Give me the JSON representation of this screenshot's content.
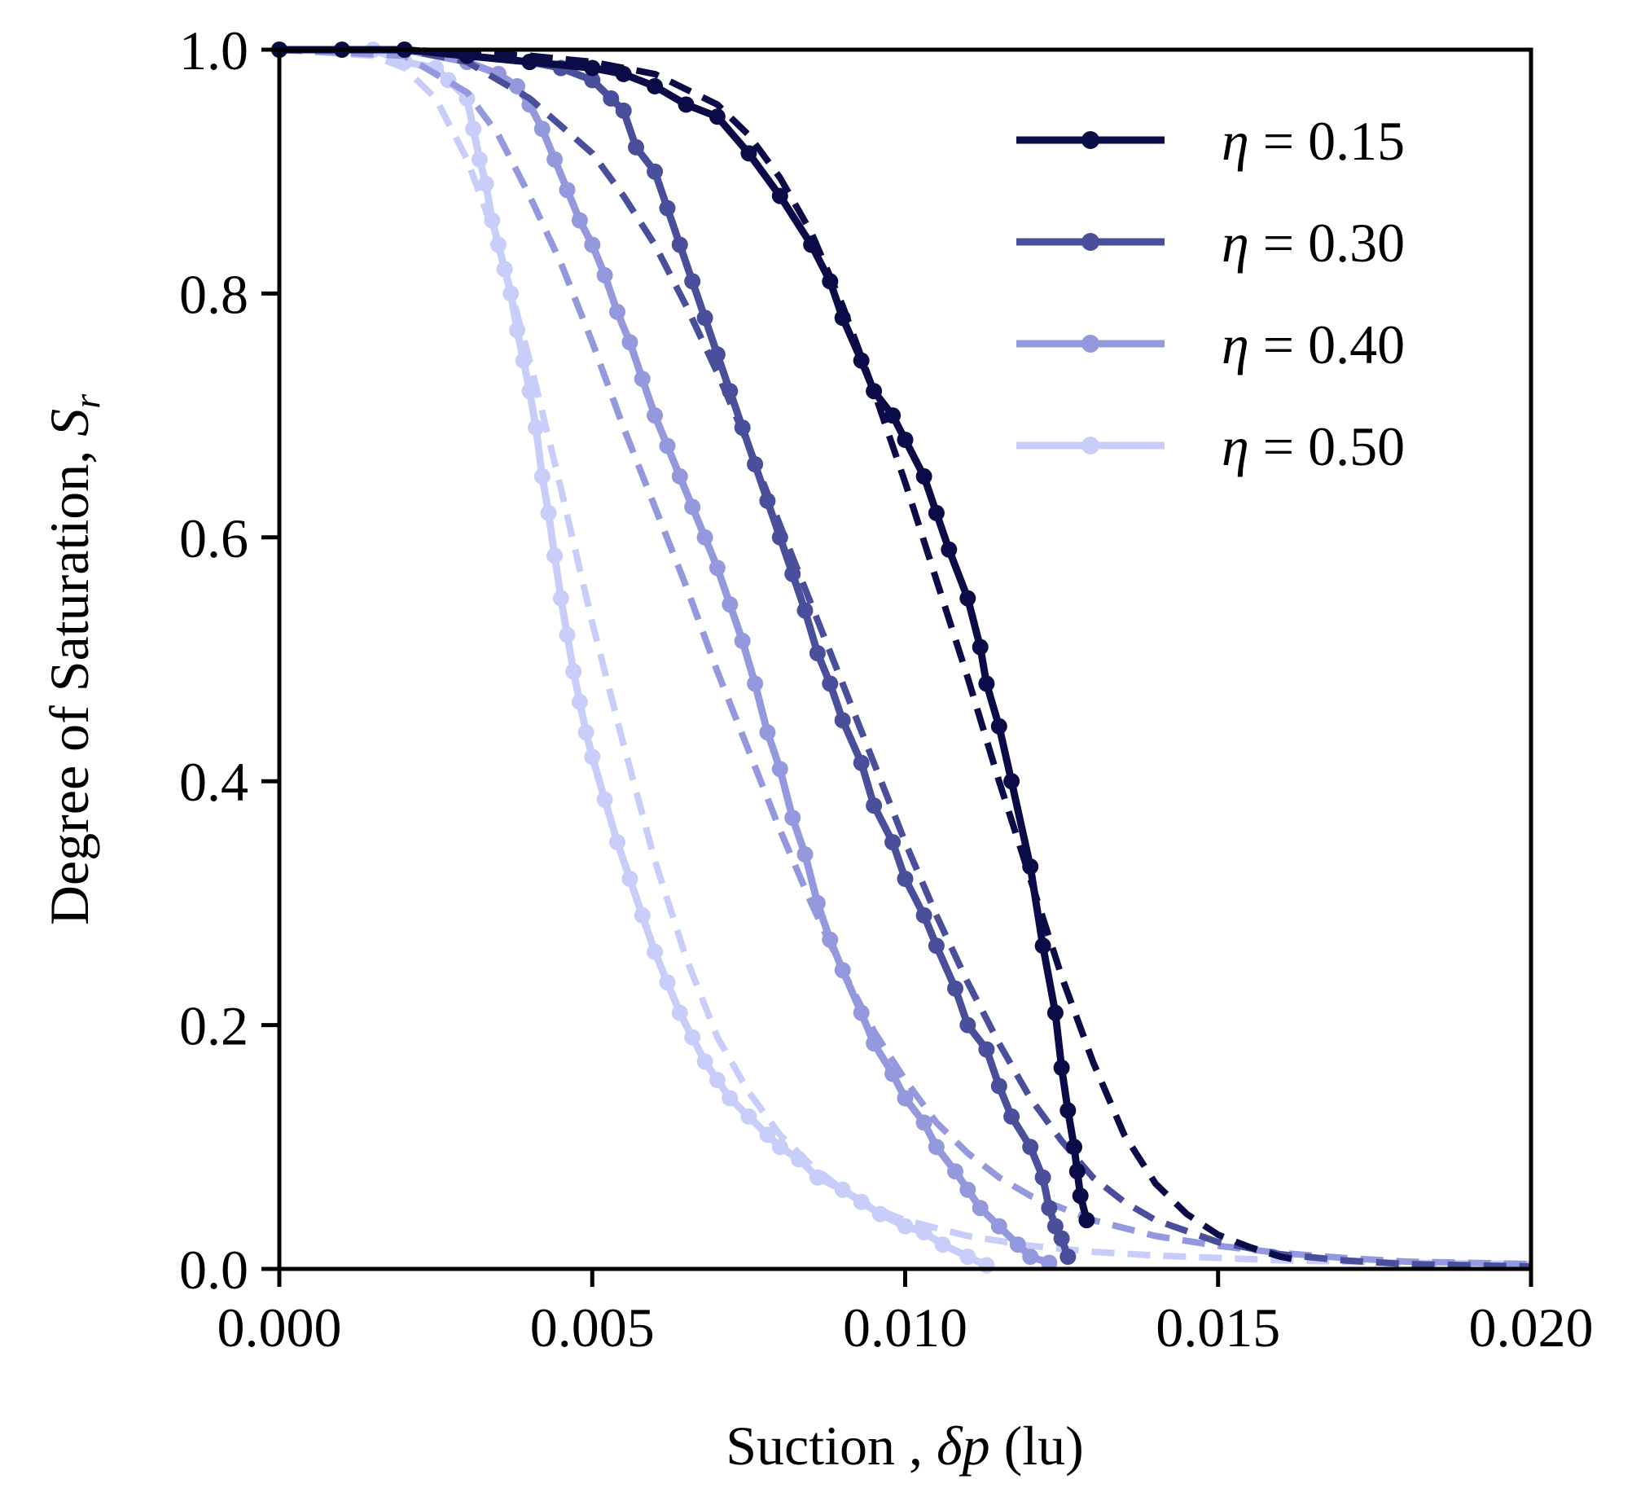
{
  "chart_data": {
    "type": "line",
    "title": "",
    "xlabel": {
      "prefix": "Suction , ",
      "symbol": "δp",
      "suffix": " (lu)"
    },
    "ylabel": {
      "prefix": "Degree of Saturation, ",
      "symbol": "S",
      "subscript": "r"
    },
    "xlim": [
      0.0,
      0.02
    ],
    "ylim": [
      0.0,
      1.0
    ],
    "x_ticks": [
      "0.000",
      "0.005",
      "0.010",
      "0.015",
      "0.020"
    ],
    "y_ticks": [
      "0.0",
      "0.2",
      "0.4",
      "0.6",
      "0.8",
      "1.0"
    ],
    "grid": false,
    "legend_position": "top-right",
    "series": [
      {
        "name": "η = 0.15",
        "legend": {
          "symbol": "η",
          "text": " = 0.15"
        },
        "color": "#0b0b47",
        "simulation": [
          [
            0.0,
            1.0
          ],
          [
            0.001,
            1.0
          ],
          [
            0.002,
            1.0
          ],
          [
            0.003,
            0.995
          ],
          [
            0.004,
            0.99
          ],
          [
            0.005,
            0.985
          ],
          [
            0.0055,
            0.98
          ],
          [
            0.006,
            0.97
          ],
          [
            0.0065,
            0.955
          ],
          [
            0.007,
            0.945
          ],
          [
            0.0075,
            0.915
          ],
          [
            0.008,
            0.88
          ],
          [
            0.0085,
            0.84
          ],
          [
            0.0088,
            0.81
          ],
          [
            0.009,
            0.78
          ],
          [
            0.0093,
            0.745
          ],
          [
            0.0095,
            0.72
          ],
          [
            0.0098,
            0.7
          ],
          [
            0.01,
            0.68
          ],
          [
            0.0103,
            0.65
          ],
          [
            0.0105,
            0.62
          ],
          [
            0.0107,
            0.59
          ],
          [
            0.011,
            0.55
          ],
          [
            0.0112,
            0.51
          ],
          [
            0.0113,
            0.48
          ],
          [
            0.0115,
            0.445
          ],
          [
            0.0117,
            0.4
          ],
          [
            0.012,
            0.33
          ],
          [
            0.0122,
            0.265
          ],
          [
            0.0124,
            0.21
          ],
          [
            0.0125,
            0.165
          ],
          [
            0.0126,
            0.13
          ],
          [
            0.0127,
            0.1
          ],
          [
            0.01275,
            0.08
          ],
          [
            0.0128,
            0.06
          ],
          [
            0.0129,
            0.04
          ]
        ],
        "fit": [
          [
            0.0,
            1.0
          ],
          [
            0.002,
            1.0
          ],
          [
            0.004,
            0.995
          ],
          [
            0.005,
            0.99
          ],
          [
            0.006,
            0.98
          ],
          [
            0.007,
            0.955
          ],
          [
            0.0075,
            0.93
          ],
          [
            0.008,
            0.895
          ],
          [
            0.0085,
            0.85
          ],
          [
            0.009,
            0.79
          ],
          [
            0.0095,
            0.72
          ],
          [
            0.01,
            0.645
          ],
          [
            0.0105,
            0.565
          ],
          [
            0.011,
            0.485
          ],
          [
            0.0115,
            0.4
          ],
          [
            0.012,
            0.32
          ],
          [
            0.0125,
            0.24
          ],
          [
            0.013,
            0.17
          ],
          [
            0.0135,
            0.11
          ],
          [
            0.014,
            0.07
          ],
          [
            0.0145,
            0.045
          ],
          [
            0.015,
            0.028
          ],
          [
            0.0155,
            0.018
          ],
          [
            0.016,
            0.01
          ],
          [
            0.0163,
            0.007
          ]
        ]
      },
      {
        "name": "η = 0.30",
        "legend": {
          "symbol": "η",
          "text": " = 0.30"
        },
        "color": "#4a4f9b",
        "simulation": [
          [
            0.0,
            1.0
          ],
          [
            0.002,
            1.0
          ],
          [
            0.003,
            0.995
          ],
          [
            0.004,
            0.99
          ],
          [
            0.0045,
            0.985
          ],
          [
            0.005,
            0.975
          ],
          [
            0.0053,
            0.96
          ],
          [
            0.0055,
            0.95
          ],
          [
            0.0057,
            0.92
          ],
          [
            0.006,
            0.9
          ],
          [
            0.0062,
            0.87
          ],
          [
            0.0064,
            0.84
          ],
          [
            0.0066,
            0.81
          ],
          [
            0.0068,
            0.78
          ],
          [
            0.007,
            0.75
          ],
          [
            0.0072,
            0.72
          ],
          [
            0.0074,
            0.69
          ],
          [
            0.0076,
            0.66
          ],
          [
            0.0078,
            0.63
          ],
          [
            0.008,
            0.6
          ],
          [
            0.0082,
            0.57
          ],
          [
            0.0084,
            0.54
          ],
          [
            0.0086,
            0.505
          ],
          [
            0.0088,
            0.48
          ],
          [
            0.009,
            0.45
          ],
          [
            0.0093,
            0.415
          ],
          [
            0.0095,
            0.38
          ],
          [
            0.0098,
            0.35
          ],
          [
            0.01,
            0.32
          ],
          [
            0.0103,
            0.29
          ],
          [
            0.0105,
            0.265
          ],
          [
            0.0108,
            0.23
          ],
          [
            0.011,
            0.2
          ],
          [
            0.0113,
            0.18
          ],
          [
            0.0115,
            0.15
          ],
          [
            0.0117,
            0.125
          ],
          [
            0.012,
            0.1
          ],
          [
            0.0122,
            0.075
          ],
          [
            0.0123,
            0.05
          ],
          [
            0.0124,
            0.035
          ],
          [
            0.0125,
            0.025
          ],
          [
            0.0126,
            0.01
          ]
        ],
        "fit": [
          [
            0.0,
            1.0
          ],
          [
            0.002,
            1.0
          ],
          [
            0.003,
            0.99
          ],
          [
            0.004,
            0.96
          ],
          [
            0.005,
            0.915
          ],
          [
            0.0055,
            0.88
          ],
          [
            0.006,
            0.84
          ],
          [
            0.0065,
            0.79
          ],
          [
            0.007,
            0.735
          ],
          [
            0.0075,
            0.675
          ],
          [
            0.008,
            0.61
          ],
          [
            0.0085,
            0.545
          ],
          [
            0.009,
            0.48
          ],
          [
            0.0095,
            0.415
          ],
          [
            0.01,
            0.35
          ],
          [
            0.0105,
            0.29
          ],
          [
            0.011,
            0.235
          ],
          [
            0.0115,
            0.185
          ],
          [
            0.012,
            0.14
          ],
          [
            0.0125,
            0.105
          ],
          [
            0.013,
            0.075
          ],
          [
            0.0135,
            0.055
          ],
          [
            0.014,
            0.04
          ],
          [
            0.015,
            0.022
          ],
          [
            0.016,
            0.012
          ],
          [
            0.017,
            0.007
          ],
          [
            0.018,
            0.004
          ],
          [
            0.02,
            0.002
          ]
        ]
      },
      {
        "name": "η = 0.40",
        "legend": {
          "symbol": "η",
          "text": " = 0.40"
        },
        "color": "#9499de",
        "simulation": [
          [
            0.0,
            1.0
          ],
          [
            0.002,
            1.0
          ],
          [
            0.003,
            0.99
          ],
          [
            0.0035,
            0.98
          ],
          [
            0.0038,
            0.97
          ],
          [
            0.004,
            0.955
          ],
          [
            0.0042,
            0.935
          ],
          [
            0.0044,
            0.91
          ],
          [
            0.0046,
            0.885
          ],
          [
            0.0048,
            0.86
          ],
          [
            0.005,
            0.84
          ],
          [
            0.0052,
            0.815
          ],
          [
            0.0054,
            0.785
          ],
          [
            0.0056,
            0.76
          ],
          [
            0.0058,
            0.73
          ],
          [
            0.006,
            0.7
          ],
          [
            0.0062,
            0.675
          ],
          [
            0.0064,
            0.65
          ],
          [
            0.0066,
            0.625
          ],
          [
            0.0068,
            0.6
          ],
          [
            0.007,
            0.575
          ],
          [
            0.0072,
            0.545
          ],
          [
            0.0074,
            0.515
          ],
          [
            0.0076,
            0.48
          ],
          [
            0.0078,
            0.44
          ],
          [
            0.008,
            0.41
          ],
          [
            0.0082,
            0.37
          ],
          [
            0.0084,
            0.34
          ],
          [
            0.0086,
            0.3
          ],
          [
            0.0088,
            0.27
          ],
          [
            0.009,
            0.245
          ],
          [
            0.0093,
            0.21
          ],
          [
            0.0095,
            0.185
          ],
          [
            0.0098,
            0.16
          ],
          [
            0.01,
            0.14
          ],
          [
            0.0103,
            0.12
          ],
          [
            0.0105,
            0.1
          ],
          [
            0.0108,
            0.08
          ],
          [
            0.011,
            0.065
          ],
          [
            0.0112,
            0.05
          ],
          [
            0.0115,
            0.035
          ],
          [
            0.0118,
            0.02
          ],
          [
            0.012,
            0.01
          ],
          [
            0.0123,
            0.005
          ]
        ],
        "fit": [
          [
            0.0,
            1.0
          ],
          [
            0.002,
            0.995
          ],
          [
            0.003,
            0.965
          ],
          [
            0.0035,
            0.93
          ],
          [
            0.004,
            0.88
          ],
          [
            0.0045,
            0.825
          ],
          [
            0.005,
            0.76
          ],
          [
            0.0055,
            0.69
          ],
          [
            0.006,
            0.625
          ],
          [
            0.0065,
            0.56
          ],
          [
            0.007,
            0.49
          ],
          [
            0.0075,
            0.425
          ],
          [
            0.008,
            0.36
          ],
          [
            0.0085,
            0.3
          ],
          [
            0.009,
            0.245
          ],
          [
            0.0095,
            0.195
          ],
          [
            0.01,
            0.155
          ],
          [
            0.0105,
            0.12
          ],
          [
            0.011,
            0.095
          ],
          [
            0.0115,
            0.075
          ],
          [
            0.012,
            0.06
          ],
          [
            0.013,
            0.04
          ],
          [
            0.014,
            0.027
          ],
          [
            0.015,
            0.019
          ],
          [
            0.016,
            0.013
          ],
          [
            0.017,
            0.009
          ],
          [
            0.018,
            0.006
          ],
          [
            0.02,
            0.004
          ]
        ]
      },
      {
        "name": "η = 0.50",
        "legend": {
          "symbol": "η",
          "text": " = 0.50"
        },
        "color": "#c9cdfa",
        "simulation": [
          [
            0.0,
            1.0
          ],
          [
            0.0015,
            1.0
          ],
          [
            0.002,
            0.99
          ],
          [
            0.0025,
            0.985
          ],
          [
            0.0027,
            0.975
          ],
          [
            0.003,
            0.96
          ],
          [
            0.0031,
            0.935
          ],
          [
            0.0032,
            0.91
          ],
          [
            0.0033,
            0.89
          ],
          [
            0.0034,
            0.86
          ],
          [
            0.0035,
            0.84
          ],
          [
            0.0036,
            0.82
          ],
          [
            0.0037,
            0.8
          ],
          [
            0.0038,
            0.77
          ],
          [
            0.0039,
            0.745
          ],
          [
            0.004,
            0.72
          ],
          [
            0.0041,
            0.69
          ],
          [
            0.0042,
            0.65
          ],
          [
            0.0043,
            0.62
          ],
          [
            0.0044,
            0.585
          ],
          [
            0.0045,
            0.55
          ],
          [
            0.0046,
            0.52
          ],
          [
            0.0047,
            0.49
          ],
          [
            0.0048,
            0.465
          ],
          [
            0.0049,
            0.44
          ],
          [
            0.005,
            0.42
          ],
          [
            0.0052,
            0.385
          ],
          [
            0.0054,
            0.35
          ],
          [
            0.0056,
            0.32
          ],
          [
            0.0058,
            0.29
          ],
          [
            0.006,
            0.26
          ],
          [
            0.0062,
            0.235
          ],
          [
            0.0064,
            0.21
          ],
          [
            0.0066,
            0.19
          ],
          [
            0.0068,
            0.17
          ],
          [
            0.007,
            0.155
          ],
          [
            0.0072,
            0.14
          ],
          [
            0.0075,
            0.125
          ],
          [
            0.0078,
            0.11
          ],
          [
            0.008,
            0.1
          ],
          [
            0.0083,
            0.09
          ],
          [
            0.0086,
            0.075
          ],
          [
            0.009,
            0.065
          ],
          [
            0.0093,
            0.055
          ],
          [
            0.0096,
            0.045
          ],
          [
            0.01,
            0.035
          ],
          [
            0.0103,
            0.03
          ],
          [
            0.0106,
            0.02
          ],
          [
            0.011,
            0.01
          ],
          [
            0.0113,
            0.003
          ]
        ],
        "fit": [
          [
            0.0,
            1.0
          ],
          [
            0.0015,
            0.995
          ],
          [
            0.002,
            0.985
          ],
          [
            0.0025,
            0.96
          ],
          [
            0.003,
            0.91
          ],
          [
            0.0035,
            0.84
          ],
          [
            0.004,
            0.745
          ],
          [
            0.0045,
            0.64
          ],
          [
            0.005,
            0.53
          ],
          [
            0.0055,
            0.43
          ],
          [
            0.006,
            0.335
          ],
          [
            0.0065,
            0.255
          ],
          [
            0.007,
            0.19
          ],
          [
            0.0075,
            0.145
          ],
          [
            0.008,
            0.11
          ],
          [
            0.0085,
            0.085
          ],
          [
            0.009,
            0.065
          ],
          [
            0.0095,
            0.05
          ],
          [
            0.01,
            0.04
          ],
          [
            0.011,
            0.027
          ],
          [
            0.012,
            0.019
          ],
          [
            0.013,
            0.014
          ],
          [
            0.014,
            0.011
          ],
          [
            0.015,
            0.009
          ],
          [
            0.016,
            0.007
          ],
          [
            0.018,
            0.005
          ],
          [
            0.02,
            0.004
          ]
        ]
      }
    ]
  }
}
